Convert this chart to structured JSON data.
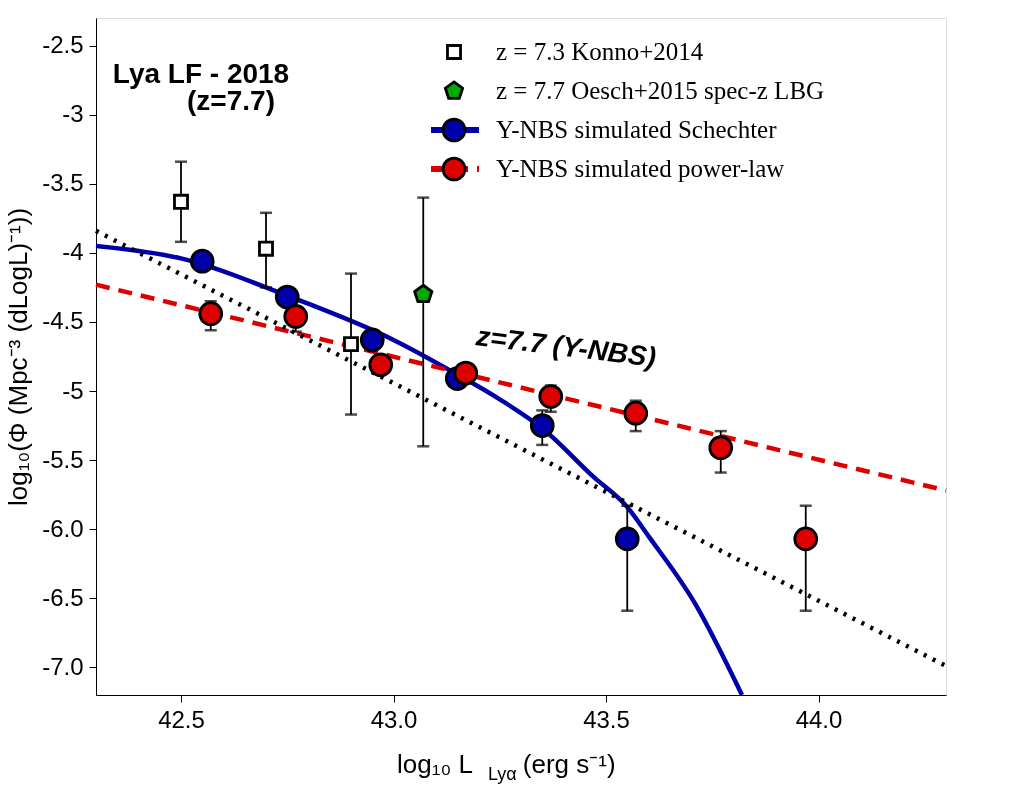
{
  "chart_data": {
    "type": "scatter",
    "title": "Lya LF - 2018",
    "subtitle": "(z=7.7)",
    "xlabel": "log₁₀ L$_{Lyα}$ (erg s⁻¹)",
    "ylabel": "log₁₀(Φ (Mpc⁻³ (dLogL)⁻¹))",
    "annotations": [
      "z=7.7 (Y-NBS)"
    ],
    "xlim": [
      42.3,
      44.3
    ],
    "xticks": [
      42.5,
      {
        "value": 43,
        "label": "43.0"
      },
      43.5,
      {
        "value": 44,
        "label": "44.0"
      }
    ],
    "ylim": [
      -7.2,
      -2.3
    ],
    "yticks": [
      -2.5,
      -3,
      -3.5,
      -4,
      -4.5,
      -5,
      -5.5,
      {
        "value": -6,
        "label": "-6.0"
      },
      -6.5,
      {
        "value": -7,
        "label": "-7.0"
      }
    ],
    "grid": false,
    "legend": "top right",
    "series": [
      {
        "type": "line",
        "color": "#0000aa",
        "line_style": "solid",
        "x": [
          42.3,
          42.5,
          42.75,
          43.0,
          43.15,
          43.25,
          43.35,
          43.47,
          43.55,
          43.6,
          43.71,
          43.82
        ],
        "values": [
          -3.95,
          -4.04,
          -4.31,
          -4.63,
          -4.88,
          -5.06,
          -5.27,
          -5.62,
          -5.84,
          -6.05,
          -6.54,
          -7.2
        ]
      },
      {
        "type": "line",
        "color": "#dd0000",
        "line_style": "dashed",
        "x": [
          42.3,
          44.3
        ],
        "values": [
          -4.23,
          -5.72
        ]
      },
      {
        "type": "line",
        "color": "#000000",
        "line_style": "dotted",
        "x": [
          42.3,
          44.3
        ],
        "values": [
          -3.84,
          -6.99
        ]
      },
      {
        "name": "z = 7.3 Konno+2014",
        "color": "#ffffff",
        "marker": "square",
        "x": [
          42.5,
          42.7,
          42.9
        ],
        "values": [
          -3.63,
          -3.97,
          -4.66
        ],
        "errors": [
          [
            -3.92,
            -3.34
          ],
          [
            -4.25,
            -3.71
          ],
          [
            -5.17,
            -4.15
          ]
        ]
      },
      {
        "name": "z = 7.7 Oesch+2015 spec-z LBG",
        "color": "#00aa00",
        "x": [
          43.07
        ],
        "values": [
          -4.3
        ],
        "errors": [
          [
            -5.4,
            -3.6
          ]
        ]
      },
      {
        "name": "Y-NBS simulated Schechter",
        "color": "#0000aa",
        "marker": "circle",
        "x": [
          42.55,
          42.75,
          42.95,
          43.15,
          43.35,
          43.55
        ],
        "values": [
          -4.06,
          -4.32,
          -4.63,
          -4.91,
          -5.25,
          -6.07
        ],
        "errors": [
          null,
          null,
          null,
          null,
          [
            -5.39,
            -5.14
          ],
          [
            -6.59,
            -5.83
          ]
        ]
      },
      {
        "name": "Y-NBS simulated power-law",
        "color": "#dd0000",
        "marker": "circle",
        "x": [
          42.57,
          42.77,
          42.97,
          43.17,
          43.37,
          43.57,
          43.77,
          43.97
        ],
        "values": [
          -4.44,
          -4.46,
          -4.81,
          -4.87,
          -5.04,
          -5.16,
          -5.41,
          -6.07
        ],
        "errors": [
          [
            -4.56,
            -4.35
          ],
          [
            -4.57,
            -4.4
          ],
          null,
          null,
          [
            -5.15,
            -4.96
          ],
          [
            -5.29,
            -5.07
          ],
          [
            -5.59,
            -5.29
          ],
          [
            -6.59,
            -5.83
          ]
        ]
      }
    ]
  }
}
